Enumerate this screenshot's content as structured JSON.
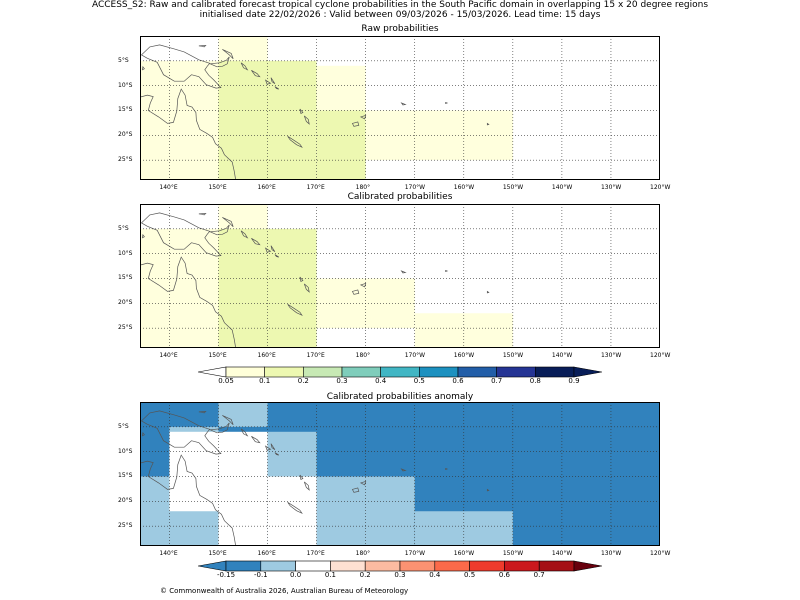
{
  "header": {
    "line1": "ACCESS_S2: Raw and calibrated forecast tropical cyclone probabilities in the South Pacific domain in overlapping 15 x 20 degree regions",
    "line2": "initialised date 22/02/2026 :  Valid between 09/03/2026 - 15/03/2026. Lead time: 15 days"
  },
  "panels": [
    {
      "title": "Raw probabilities"
    },
    {
      "title": "Calibrated probabilities"
    },
    {
      "title": "Calibrated probabilities anomaly"
    }
  ],
  "axes": {
    "lon_ticks": [
      "140°E",
      "150°E",
      "160°E",
      "170°E",
      "180°",
      "170°W",
      "160°W",
      "150°W",
      "140°W",
      "130°W",
      "120°W"
    ],
    "lat_ticks": [
      "5°S",
      "10°S",
      "15°S",
      "20°S",
      "25°S"
    ]
  },
  "chart_data": [
    {
      "type": "heatmap",
      "title": "Raw probabilities",
      "lon_range": [
        134,
        240
      ],
      "lat_range": [
        -29,
        0
      ],
      "cells": [
        {
          "lon": [
            150,
            160
          ],
          "lat": [
            -5,
            0
          ],
          "prob": "0.05-0.1"
        },
        {
          "lon": [
            134,
            150
          ],
          "lat": [
            -29,
            -5
          ],
          "prob": "0.05-0.1"
        },
        {
          "lon": [
            150,
            170
          ],
          "lat": [
            -29,
            -5
          ],
          "prob": "0.1-0.2"
        },
        {
          "lon": [
            170,
            180
          ],
          "lat": [
            -29,
            -15
          ],
          "prob": "0.1-0.2"
        },
        {
          "lon": [
            170,
            180
          ],
          "lat": [
            -15,
            -6
          ],
          "prob": "0.05-0.1"
        },
        {
          "lon": [
            180,
            210
          ],
          "lat": [
            -25,
            -15
          ],
          "prob": "0.05-0.1"
        }
      ]
    },
    {
      "type": "heatmap",
      "title": "Calibrated probabilities",
      "lon_range": [
        134,
        240
      ],
      "lat_range": [
        -29,
        0
      ],
      "cells": [
        {
          "lon": [
            150,
            160
          ],
          "lat": [
            -5,
            0
          ],
          "prob": "0.05-0.1"
        },
        {
          "lon": [
            134,
            150
          ],
          "lat": [
            -29,
            -5
          ],
          "prob": "0.05-0.1"
        },
        {
          "lon": [
            150,
            170
          ],
          "lat": [
            -29,
            -5
          ],
          "prob": "0.1-0.2"
        },
        {
          "lon": [
            170,
            190
          ],
          "lat": [
            -25,
            -15
          ],
          "prob": "0.05-0.1"
        },
        {
          "lon": [
            190,
            210
          ],
          "lat": [
            -29,
            -22
          ],
          "prob": "0.05-0.1"
        }
      ]
    },
    {
      "type": "heatmap",
      "title": "Calibrated probabilities anomaly",
      "lon_range": [
        134,
        240
      ],
      "lat_range": [
        -29,
        0
      ],
      "background": "-0.15 to -0.1",
      "cells": [
        {
          "lon": [
            134,
            150
          ],
          "lat": [
            -29,
            -15
          ],
          "anomaly": "-0.1 to 0"
        },
        {
          "lon": [
            140,
            150
          ],
          "lat": [
            -29,
            -5
          ],
          "anomaly": "-0.1 to 0"
        },
        {
          "lon": [
            150,
            160
          ],
          "lat": [
            -5,
            0
          ],
          "anomaly": "-0.1 to 0"
        },
        {
          "lon": [
            160,
            170
          ],
          "lat": [
            -15,
            -6
          ],
          "anomaly": "-0.1 to 0"
        },
        {
          "lon": [
            170,
            190
          ],
          "lat": [
            -29,
            -15
          ],
          "anomaly": "-0.1 to 0"
        },
        {
          "lon": [
            190,
            210
          ],
          "lat": [
            -29,
            -22
          ],
          "anomaly": "-0.1 to 0"
        },
        {
          "lon": [
            150,
            160
          ],
          "lat": [
            -29,
            -6
          ],
          "anomaly": "0"
        },
        {
          "lon": [
            160,
            170
          ],
          "lat": [
            -29,
            -15
          ],
          "anomaly": "0"
        },
        {
          "lon": [
            140,
            150
          ],
          "lat": [
            -22,
            -6
          ],
          "anomaly": "0"
        }
      ]
    }
  ],
  "colorbars": [
    {
      "labels": [
        "0.05",
        "0.1",
        "0.2",
        "0.3",
        "0.4",
        "0.5",
        "0.6",
        "0.7",
        "0.8",
        "0.9"
      ],
      "colors": [
        "#ffffff",
        "#ffffd9",
        "#edf8b1",
        "#c7e9b4",
        "#7fcdbb",
        "#41b6c4",
        "#1d91c0",
        "#225ea8",
        "#253494",
        "#081d58",
        "#081d58"
      ]
    },
    {
      "labels": [
        "-0.15",
        "-0.1",
        "0.0",
        "0.1",
        "0.2",
        "0.3",
        "0.4",
        "0.5",
        "0.6",
        "0.7"
      ],
      "colors": [
        "#3182bd",
        "#3182bd",
        "#9ecae1",
        "#ffffff",
        "#fee0d2",
        "#fcbba1",
        "#fc9272",
        "#fb6a4a",
        "#ef3b2c",
        "#cb181d",
        "#a50f15",
        "#67000d"
      ]
    }
  ],
  "colors": {
    "very_low": "#ffffdd",
    "low": "#edf8b1",
    "anom_strong_neg": "#3182bd",
    "anom_weak_neg": "#9ecae1",
    "anom_zero": "#ffffff"
  },
  "footer": "© Commonwealth of Australia 2026, Australian Bureau of Meteorology"
}
